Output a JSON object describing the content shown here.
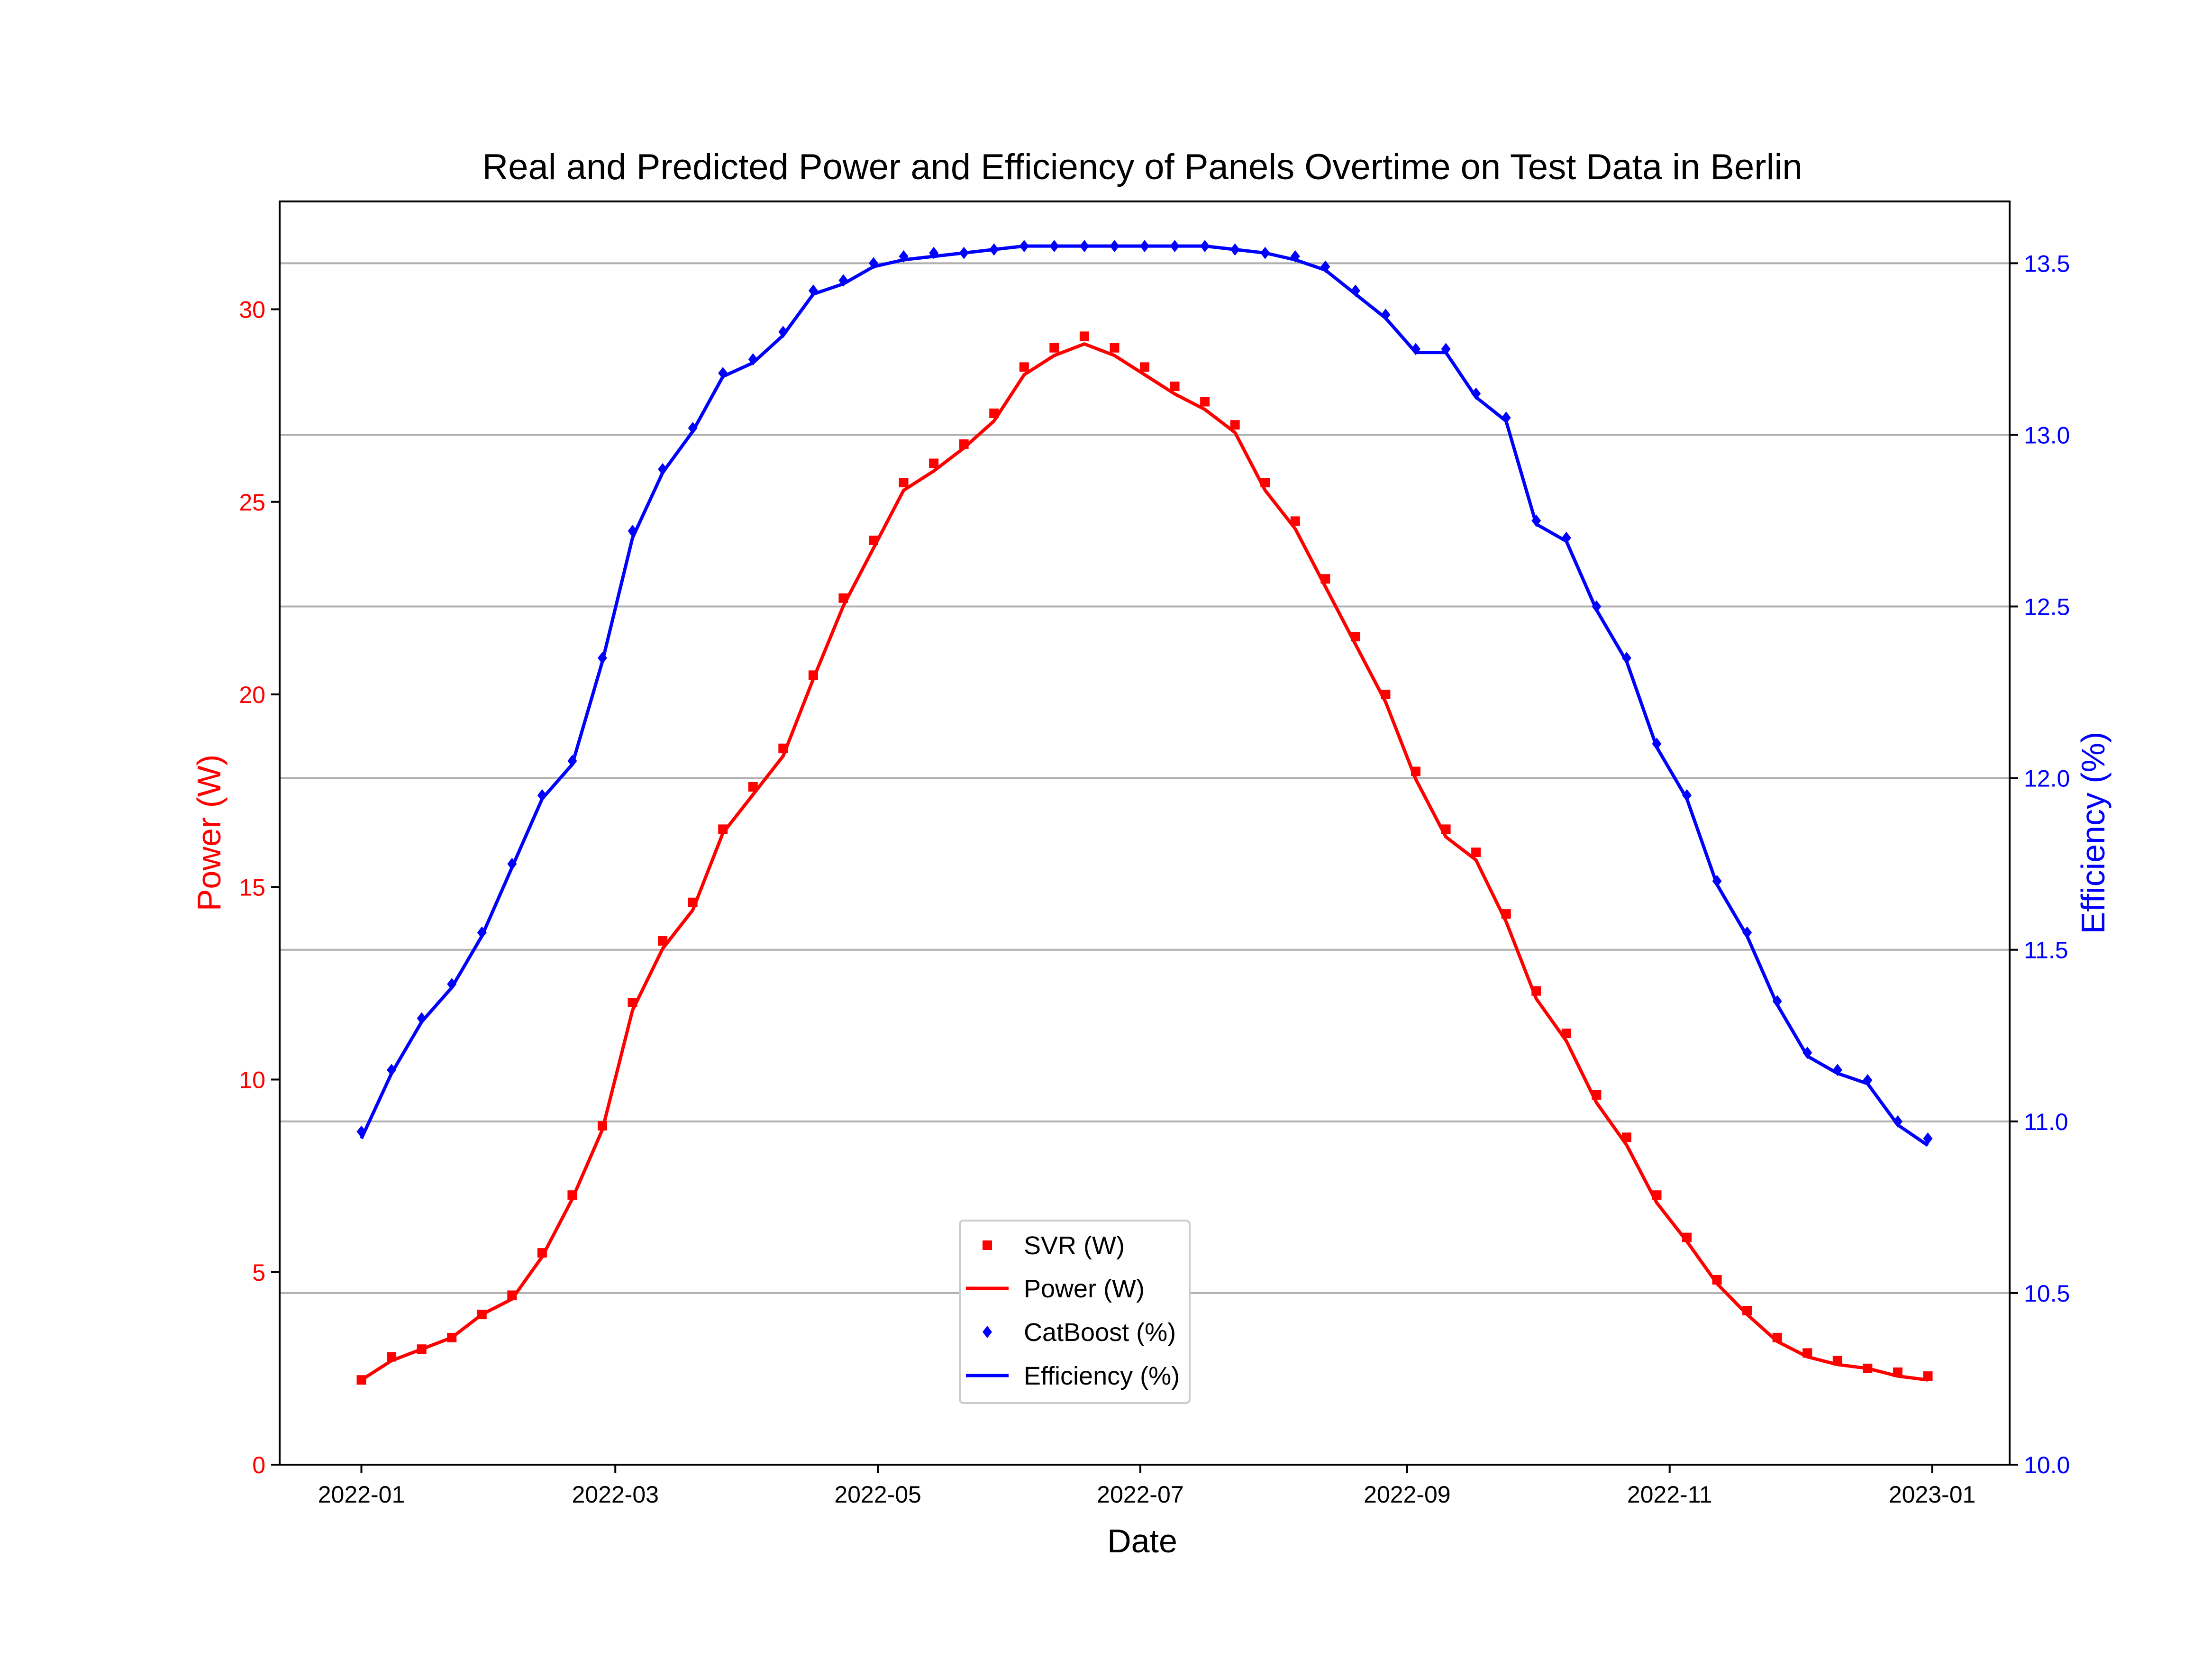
{
  "chart_data": {
    "type": "line",
    "title": "Real and Predicted Power and Efficiency of Panels Overtime on Test Data in Berlin",
    "xlabel": "Date",
    "ylabel_left": "Power (W)",
    "ylabel_right": "Efficiency (%)",
    "xlim": [
      "2021-12-13",
      "2023-01-19"
    ],
    "ylim_left": [
      0,
      32.8
    ],
    "ylim_right": [
      10.0,
      13.68
    ],
    "x_ticks": [
      "2022-01",
      "2022-03",
      "2022-05",
      "2022-07",
      "2022-09",
      "2022-11",
      "2023-01"
    ],
    "y_ticks_left": [
      0,
      5,
      10,
      15,
      20,
      25,
      30
    ],
    "y_ticks_right": [
      "10.0",
      "10.5",
      "11.0",
      "11.5",
      "12.0",
      "12.5",
      "13.0",
      "13.5"
    ],
    "grid": "horizontal, right axis",
    "legend_position": "lower center",
    "colors": {
      "power": "#ff0000",
      "efficiency": "#0000ff",
      "grid": "#b0b0b0",
      "axis": "#000000"
    },
    "series": [
      {
        "name": "SVR (W)",
        "axis": "left",
        "style": "square-markers",
        "color": "#ff0000",
        "points": [
          [
            "2022-01-01",
            2.2
          ],
          [
            "2022-01-08",
            2.8
          ],
          [
            "2022-01-15",
            3.0
          ],
          [
            "2022-01-22",
            3.3
          ],
          [
            "2022-01-29",
            3.9
          ],
          [
            "2022-02-05",
            4.4
          ],
          [
            "2022-02-12",
            5.5
          ],
          [
            "2022-02-19",
            7.0
          ],
          [
            "2022-02-26",
            8.8
          ],
          [
            "2022-03-05",
            12.0
          ],
          [
            "2022-03-12",
            13.6
          ],
          [
            "2022-03-19",
            14.6
          ],
          [
            "2022-03-26",
            16.5
          ],
          [
            "2022-04-02",
            17.6
          ],
          [
            "2022-04-09",
            18.6
          ],
          [
            "2022-04-16",
            20.5
          ],
          [
            "2022-04-23",
            22.5
          ],
          [
            "2022-04-30",
            24.0
          ],
          [
            "2022-05-07",
            25.5
          ],
          [
            "2022-05-14",
            26.0
          ],
          [
            "2022-05-21",
            26.5
          ],
          [
            "2022-05-28",
            27.3
          ],
          [
            "2022-06-04",
            28.5
          ],
          [
            "2022-06-11",
            29.0
          ],
          [
            "2022-06-18",
            29.3
          ],
          [
            "2022-06-25",
            29.0
          ],
          [
            "2022-07-02",
            28.5
          ],
          [
            "2022-07-09",
            28.0
          ],
          [
            "2022-07-16",
            27.6
          ],
          [
            "2022-07-23",
            27.0
          ],
          [
            "2022-07-30",
            25.5
          ],
          [
            "2022-08-06",
            24.5
          ],
          [
            "2022-08-13",
            23.0
          ],
          [
            "2022-08-20",
            21.5
          ],
          [
            "2022-08-27",
            20.0
          ],
          [
            "2022-09-03",
            18.0
          ],
          [
            "2022-09-10",
            16.5
          ],
          [
            "2022-09-17",
            15.9
          ],
          [
            "2022-09-24",
            14.3
          ],
          [
            "2022-10-01",
            12.3
          ],
          [
            "2022-10-08",
            11.2
          ],
          [
            "2022-10-15",
            9.6
          ],
          [
            "2022-10-22",
            8.5
          ],
          [
            "2022-10-29",
            7.0
          ],
          [
            "2022-11-05",
            5.9
          ],
          [
            "2022-11-12",
            4.8
          ],
          [
            "2022-11-19",
            4.0
          ],
          [
            "2022-11-26",
            3.3
          ],
          [
            "2022-12-03",
            2.9
          ],
          [
            "2022-12-10",
            2.7
          ],
          [
            "2022-12-17",
            2.5
          ],
          [
            "2022-12-24",
            2.4
          ],
          [
            "2022-12-31",
            2.3
          ]
        ]
      },
      {
        "name": "Power (W)",
        "axis": "left",
        "style": "line",
        "color": "#ff0000",
        "points": [
          [
            "2022-01-01",
            2.2
          ],
          [
            "2022-01-08",
            2.7
          ],
          [
            "2022-01-15",
            3.0
          ],
          [
            "2022-01-22",
            3.3
          ],
          [
            "2022-01-29",
            3.9
          ],
          [
            "2022-02-05",
            4.3
          ],
          [
            "2022-02-12",
            5.4
          ],
          [
            "2022-02-19",
            6.9
          ],
          [
            "2022-02-26",
            8.7
          ],
          [
            "2022-03-05",
            11.8
          ],
          [
            "2022-03-12",
            13.4
          ],
          [
            "2022-03-19",
            14.4
          ],
          [
            "2022-03-26",
            16.4
          ],
          [
            "2022-04-02",
            17.4
          ],
          [
            "2022-04-09",
            18.4
          ],
          [
            "2022-04-16",
            20.4
          ],
          [
            "2022-04-23",
            22.3
          ],
          [
            "2022-04-30",
            23.8
          ],
          [
            "2022-05-07",
            25.3
          ],
          [
            "2022-05-14",
            25.8
          ],
          [
            "2022-05-21",
            26.4
          ],
          [
            "2022-05-28",
            27.1
          ],
          [
            "2022-06-04",
            28.3
          ],
          [
            "2022-06-11",
            28.8
          ],
          [
            "2022-06-18",
            29.1
          ],
          [
            "2022-06-25",
            28.8
          ],
          [
            "2022-07-02",
            28.3
          ],
          [
            "2022-07-09",
            27.8
          ],
          [
            "2022-07-16",
            27.4
          ],
          [
            "2022-07-23",
            26.8
          ],
          [
            "2022-07-30",
            25.3
          ],
          [
            "2022-08-06",
            24.3
          ],
          [
            "2022-08-13",
            22.8
          ],
          [
            "2022-08-20",
            21.3
          ],
          [
            "2022-08-27",
            19.8
          ],
          [
            "2022-09-03",
            17.8
          ],
          [
            "2022-09-10",
            16.3
          ],
          [
            "2022-09-17",
            15.7
          ],
          [
            "2022-09-24",
            14.1
          ],
          [
            "2022-10-01",
            12.1
          ],
          [
            "2022-10-08",
            11.0
          ],
          [
            "2022-10-15",
            9.4
          ],
          [
            "2022-10-22",
            8.3
          ],
          [
            "2022-10-29",
            6.8
          ],
          [
            "2022-11-05",
            5.8
          ],
          [
            "2022-11-12",
            4.7
          ],
          [
            "2022-11-19",
            3.9
          ],
          [
            "2022-11-26",
            3.2
          ],
          [
            "2022-12-03",
            2.8
          ],
          [
            "2022-12-10",
            2.6
          ],
          [
            "2022-12-17",
            2.5
          ],
          [
            "2022-12-24",
            2.3
          ],
          [
            "2022-12-31",
            2.2
          ]
        ]
      },
      {
        "name": "CatBoost (%)",
        "axis": "right",
        "style": "diamond-markers",
        "color": "#0000ff",
        "points": [
          [
            "2022-01-01",
            10.97
          ],
          [
            "2022-01-08",
            11.15
          ],
          [
            "2022-01-15",
            11.3
          ],
          [
            "2022-01-22",
            11.4
          ],
          [
            "2022-01-29",
            11.55
          ],
          [
            "2022-02-05",
            11.75
          ],
          [
            "2022-02-12",
            11.95
          ],
          [
            "2022-02-19",
            12.05
          ],
          [
            "2022-02-26",
            12.35
          ],
          [
            "2022-03-05",
            12.72
          ],
          [
            "2022-03-12",
            12.9
          ],
          [
            "2022-03-19",
            13.02
          ],
          [
            "2022-03-26",
            13.18
          ],
          [
            "2022-04-02",
            13.22
          ],
          [
            "2022-04-09",
            13.3
          ],
          [
            "2022-04-16",
            13.42
          ],
          [
            "2022-04-23",
            13.45
          ],
          [
            "2022-04-30",
            13.5
          ],
          [
            "2022-05-07",
            13.52
          ],
          [
            "2022-05-14",
            13.53
          ],
          [
            "2022-05-21",
            13.53
          ],
          [
            "2022-05-28",
            13.54
          ],
          [
            "2022-06-04",
            13.55
          ],
          [
            "2022-06-11",
            13.55
          ],
          [
            "2022-06-18",
            13.55
          ],
          [
            "2022-06-25",
            13.55
          ],
          [
            "2022-07-02",
            13.55
          ],
          [
            "2022-07-09",
            13.55
          ],
          [
            "2022-07-16",
            13.55
          ],
          [
            "2022-07-23",
            13.54
          ],
          [
            "2022-07-30",
            13.53
          ],
          [
            "2022-08-06",
            13.52
          ],
          [
            "2022-08-13",
            13.49
          ],
          [
            "2022-08-20",
            13.42
          ],
          [
            "2022-08-27",
            13.35
          ],
          [
            "2022-09-03",
            13.25
          ],
          [
            "2022-09-10",
            13.25
          ],
          [
            "2022-09-17",
            13.12
          ],
          [
            "2022-09-24",
            13.05
          ],
          [
            "2022-10-01",
            12.75
          ],
          [
            "2022-10-08",
            12.7
          ],
          [
            "2022-10-15",
            12.5
          ],
          [
            "2022-10-22",
            12.35
          ],
          [
            "2022-10-29",
            12.1
          ],
          [
            "2022-11-05",
            11.95
          ],
          [
            "2022-11-12",
            11.7
          ],
          [
            "2022-11-19",
            11.55
          ],
          [
            "2022-11-26",
            11.35
          ],
          [
            "2022-12-03",
            11.2
          ],
          [
            "2022-12-10",
            11.15
          ],
          [
            "2022-12-17",
            11.12
          ],
          [
            "2022-12-24",
            11.0
          ],
          [
            "2022-12-31",
            10.95
          ]
        ]
      },
      {
        "name": "Efficiency (%)",
        "axis": "right",
        "style": "line",
        "color": "#0000ff",
        "points": [
          [
            "2022-01-01",
            10.95
          ],
          [
            "2022-01-08",
            11.14
          ],
          [
            "2022-01-15",
            11.29
          ],
          [
            "2022-01-22",
            11.39
          ],
          [
            "2022-01-29",
            11.54
          ],
          [
            "2022-02-05",
            11.74
          ],
          [
            "2022-02-12",
            11.94
          ],
          [
            "2022-02-19",
            12.04
          ],
          [
            "2022-02-26",
            12.34
          ],
          [
            "2022-03-05",
            12.7
          ],
          [
            "2022-03-12",
            12.89
          ],
          [
            "2022-03-19",
            13.01
          ],
          [
            "2022-03-26",
            13.17
          ],
          [
            "2022-04-02",
            13.21
          ],
          [
            "2022-04-09",
            13.29
          ],
          [
            "2022-04-16",
            13.41
          ],
          [
            "2022-04-23",
            13.44
          ],
          [
            "2022-04-30",
            13.49
          ],
          [
            "2022-05-07",
            13.51
          ],
          [
            "2022-05-14",
            13.52
          ],
          [
            "2022-05-21",
            13.53
          ],
          [
            "2022-05-28",
            13.54
          ],
          [
            "2022-06-04",
            13.55
          ],
          [
            "2022-06-11",
            13.55
          ],
          [
            "2022-06-18",
            13.55
          ],
          [
            "2022-06-25",
            13.55
          ],
          [
            "2022-07-02",
            13.55
          ],
          [
            "2022-07-09",
            13.55
          ],
          [
            "2022-07-16",
            13.55
          ],
          [
            "2022-07-23",
            13.54
          ],
          [
            "2022-07-30",
            13.53
          ],
          [
            "2022-08-06",
            13.51
          ],
          [
            "2022-08-13",
            13.48
          ],
          [
            "2022-08-20",
            13.41
          ],
          [
            "2022-08-27",
            13.34
          ],
          [
            "2022-09-03",
            13.24
          ],
          [
            "2022-09-10",
            13.24
          ],
          [
            "2022-09-17",
            13.11
          ],
          [
            "2022-09-24",
            13.04
          ],
          [
            "2022-10-01",
            12.74
          ],
          [
            "2022-10-08",
            12.69
          ],
          [
            "2022-10-15",
            12.49
          ],
          [
            "2022-10-22",
            12.34
          ],
          [
            "2022-10-29",
            12.09
          ],
          [
            "2022-11-05",
            11.94
          ],
          [
            "2022-11-12",
            11.69
          ],
          [
            "2022-11-19",
            11.54
          ],
          [
            "2022-11-26",
            11.34
          ],
          [
            "2022-12-03",
            11.19
          ],
          [
            "2022-12-10",
            11.14
          ],
          [
            "2022-12-17",
            11.11
          ],
          [
            "2022-12-24",
            10.99
          ],
          [
            "2022-12-31",
            10.93
          ]
        ]
      }
    ]
  }
}
